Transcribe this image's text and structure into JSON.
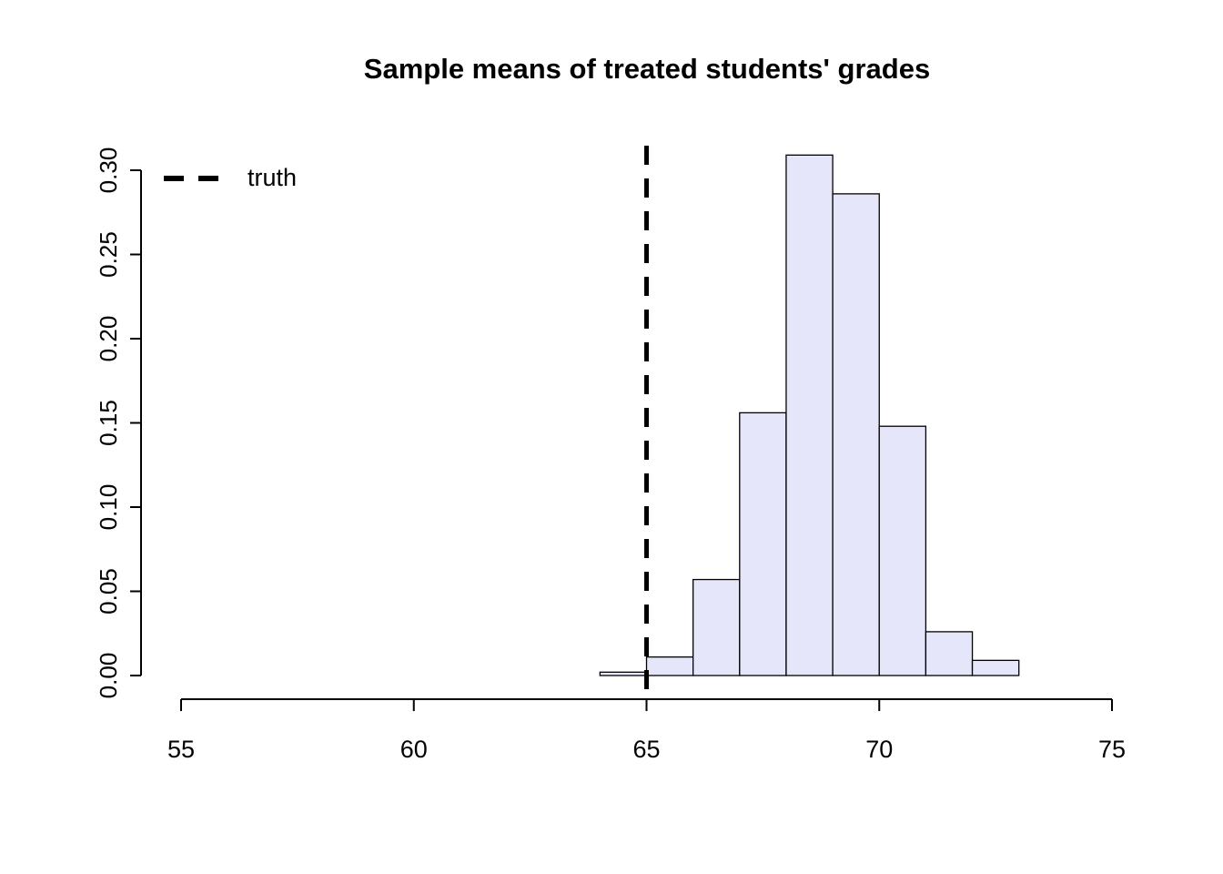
{
  "chart_data": {
    "type": "bar",
    "subtype": "histogram",
    "title": "Sample means of treated students' grades",
    "xlabel": "",
    "ylabel": "",
    "bin_edges": [
      64,
      65,
      66,
      67,
      68,
      69,
      70,
      71,
      72,
      73
    ],
    "densities": [
      0.002,
      0.011,
      0.057,
      0.156,
      0.309,
      0.286,
      0.148,
      0.026,
      0.009
    ],
    "x_ticks": [
      55,
      60,
      65,
      70,
      75
    ],
    "x_tick_labels": [
      "55",
      "60",
      "65",
      "70",
      "75"
    ],
    "y_ticks": [
      0.0,
      0.05,
      0.1,
      0.15,
      0.2,
      0.25,
      0.3
    ],
    "y_tick_labels": [
      "0.00",
      "0.05",
      "0.10",
      "0.15",
      "0.20",
      "0.25",
      "0.30"
    ],
    "xlim": [
      55,
      75
    ],
    "ylim": [
      0,
      0.3
    ],
    "grid": false,
    "bar_fill": "#e6e6fa",
    "bar_stroke": "#000000",
    "vline": {
      "x": 65,
      "style": "dashed",
      "color": "#000000",
      "label": "truth"
    },
    "legend": {
      "position": "top-left",
      "entries": [
        {
          "label": "truth",
          "line_style": "dashed",
          "color": "#000000"
        }
      ]
    }
  }
}
